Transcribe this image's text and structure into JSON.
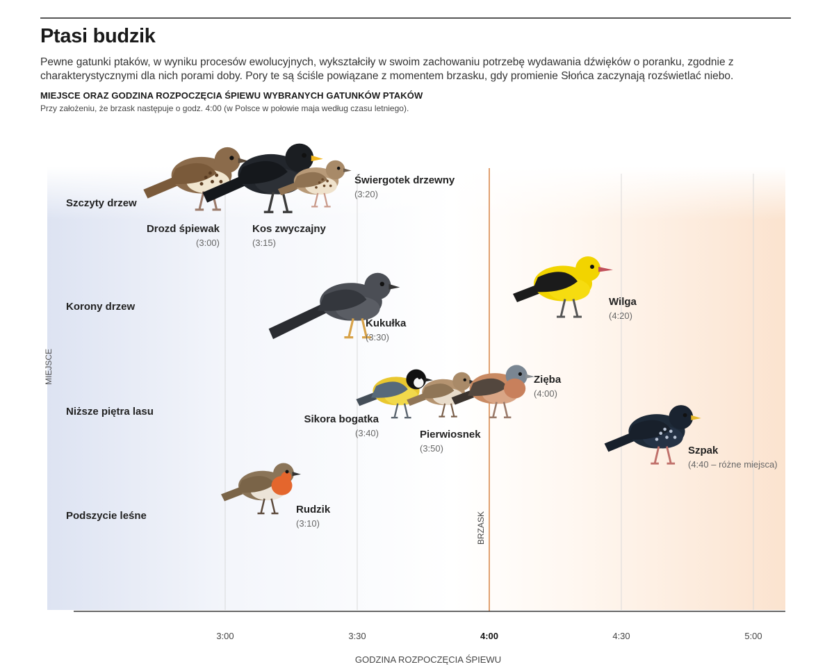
{
  "title": "Ptasi budzik",
  "intro": "Pewne gatunki ptaków, w wyniku procesów ewolucyjnych, wykształciły w swoim zachowaniu potrzebę wydawania dźwięków o poranku, zgodnie z charakterystycznymi dla nich porami doby. Pory te są ściśle powiązane z momentem brzasku, gdy promienie Słońca zaczynają rozświetlać niebo.",
  "subheading": "MIEJSCE ORAZ GODZINA ROZPOCZĘCIA ŚPIEWU WYBRANYCH GATUNKÓW PTAKÓW",
  "note": "Przy założeniu, że brzask następuje o godz. 4:00 (w Polsce w połowie maja według czasu letniego).",
  "colors": {
    "dawn_line": "#e0a070",
    "night_tint": "#dde3f2",
    "day_tint": "#fbe3cf",
    "axis": "#333333"
  },
  "chart_data": {
    "type": "scatter",
    "title": "Miejsce oraz godzina rozpoczęcia śpiewu wybranych gatunków ptaków",
    "xlabel": "GODZINA ROZPOCZĘCIA ŚPIEWU",
    "ylabel": "MIEJSCE",
    "x_unit": "minutes after 3:00",
    "xlim": [
      -35,
      125
    ],
    "x_ticks": [
      {
        "value": 0,
        "label": "3:00",
        "bold": false
      },
      {
        "value": 30,
        "label": "3:30",
        "bold": false
      },
      {
        "value": 60,
        "label": "4:00",
        "bold": true
      },
      {
        "value": 90,
        "label": "4:30",
        "bold": false
      },
      {
        "value": 120,
        "label": "5:00",
        "bold": false
      }
    ],
    "y_categories": [
      "Szczyty drzew",
      "Korony drzew",
      "Niższe piętra lasu",
      "Podszycie leśne"
    ],
    "dawn": {
      "value": 60,
      "label": "BRZASK"
    },
    "points": [
      {
        "name": "Drozd śpiewak",
        "time": "(3:00)",
        "x": 0,
        "level": 0,
        "icon": "song-thrush-icon"
      },
      {
        "name": "Kos zwyczajny",
        "time": "(3:15)",
        "x": 15,
        "level": 0,
        "icon": "blackbird-icon"
      },
      {
        "name": "Świergotek drzewny",
        "time": "(3:20)",
        "x": 20,
        "level": 0,
        "icon": "tree-pipit-icon"
      },
      {
        "name": "Kukułka",
        "time": "(3:30)",
        "x": 30,
        "level": 1,
        "icon": "cuckoo-icon"
      },
      {
        "name": "Wilga",
        "time": "(4:20)",
        "x": 80,
        "level": 1,
        "icon": "golden-oriole-icon"
      },
      {
        "name": "Sikora bogatka",
        "time": "(3:40)",
        "x": 40,
        "level": 2,
        "icon": "great-tit-icon"
      },
      {
        "name": "Pierwiosnek",
        "time": "(3:50)",
        "x": 50,
        "level": 2,
        "icon": "chiffchaff-icon"
      },
      {
        "name": "Zięba",
        "time": "(4:00)",
        "x": 60,
        "level": 2,
        "icon": "chaffinch-icon"
      },
      {
        "name": "Szpak",
        "time": "(4:40 – różne miejsca)",
        "x": 100,
        "level": 2,
        "icon": "starling-icon"
      },
      {
        "name": "Rudzik",
        "time": "(3:10)",
        "x": 10,
        "level": 3,
        "icon": "robin-icon"
      }
    ]
  }
}
